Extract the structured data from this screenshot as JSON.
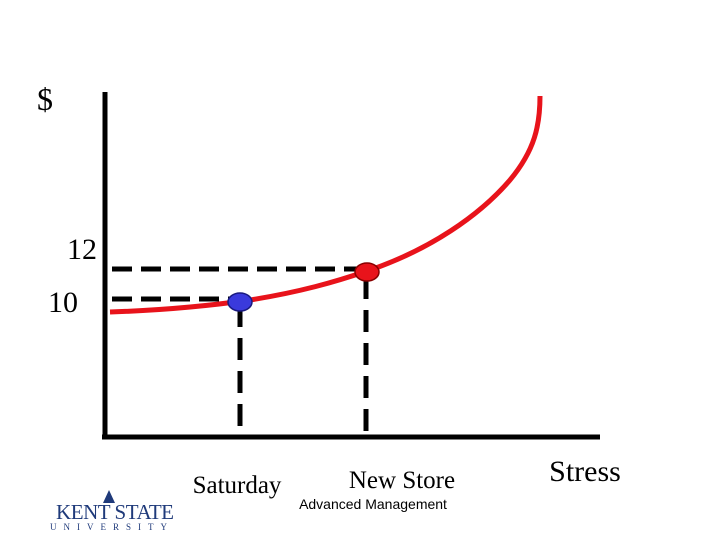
{
  "axis_label": "$",
  "y_labels": [
    12,
    10
  ],
  "x_labels": [
    "Saturday",
    "New Store"
  ],
  "x_axis_label": "Stress",
  "footer": "Advanced Management",
  "logo": {
    "name": "KENT STATE",
    "subtitle": "UNIVERSITY"
  }
}
